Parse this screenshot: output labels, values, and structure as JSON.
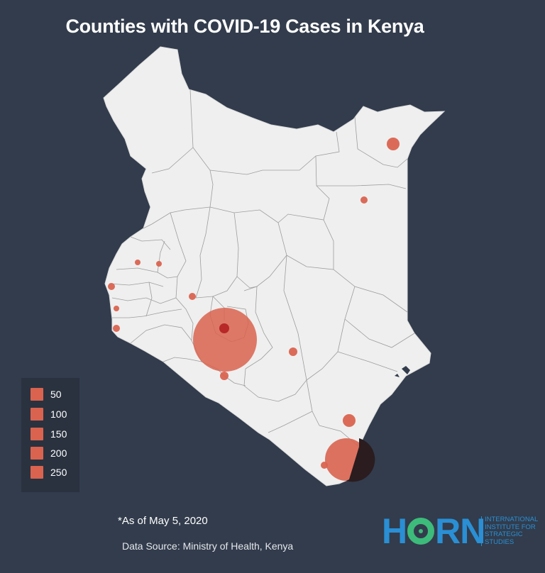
{
  "header": {
    "title": "Counties with COVID-19 Cases in Kenya"
  },
  "colors": {
    "background": "#323c4c",
    "land": "#efefef",
    "border": "#9a9a9a",
    "bubble": "#d9634f",
    "bubble_dark": "#c0392b",
    "nairobi_core": "#b21f1f",
    "mombasa_over_sea": "#2a1c1f"
  },
  "legend": {
    "items": [
      {
        "label": "50"
      },
      {
        "label": "100"
      },
      {
        "label": "150"
      },
      {
        "label": "200"
      },
      {
        "label": "250"
      }
    ]
  },
  "footer": {
    "note": "*As of May 5, 2020",
    "source": "Data Source: Ministry of Health, Kenya"
  },
  "logo": {
    "word_h": "H",
    "word_rn": "RN",
    "lines": [
      "INTERNATIONAL",
      "INSTITUTE FOR",
      "STRATEGIC",
      "STUDIES"
    ]
  }
}
